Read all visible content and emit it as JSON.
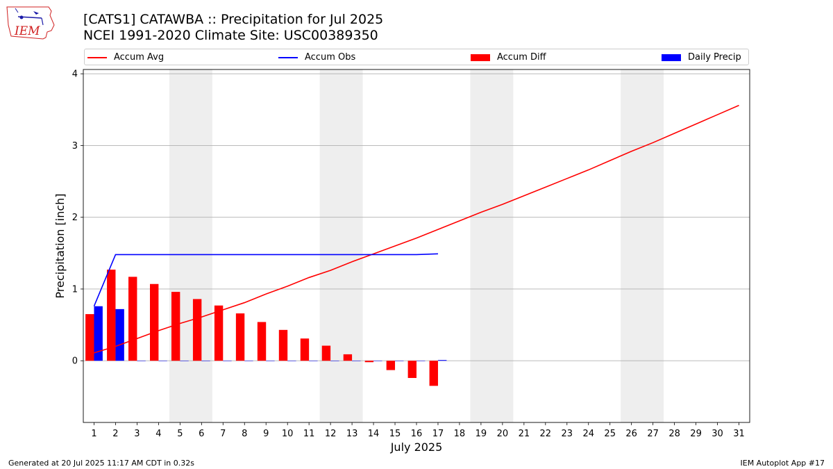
{
  "header": {
    "title_line1": "[CATS1] CATAWBA :: Precipitation for Jul 2025",
    "title_line2": "NCEI 1991-2020 Climate Site: USC00389350"
  },
  "logo": {
    "text": "IEM"
  },
  "footer": {
    "left": "Generated at 20 Jul 2025 11:17 AM CDT in 0.32s",
    "right": "IEM Autoplot App #17"
  },
  "colors": {
    "avg": "#ff0000",
    "obs": "#0000ff",
    "diff": "#ff0000",
    "daily": "#0000ff",
    "weekend": "#eeeeee",
    "grid": "#b0b0b0"
  },
  "chart_data": {
    "type": "bar",
    "xlabel": "July 2025",
    "ylabel": "Precipitation [inch]",
    "xlim": [
      0.5,
      31.5
    ],
    "ylim": [
      -0.86,
      4.06
    ],
    "yticks": [
      0,
      1,
      2,
      3,
      4
    ],
    "xticks": [
      1,
      2,
      3,
      4,
      5,
      6,
      7,
      8,
      9,
      10,
      11,
      12,
      13,
      14,
      15,
      16,
      17,
      18,
      19,
      20,
      21,
      22,
      23,
      24,
      25,
      26,
      27,
      28,
      29,
      30,
      31
    ],
    "grid": "horizontal",
    "legend_placement": "top",
    "weekend_spans": [
      [
        4.5,
        6.5
      ],
      [
        11.5,
        13.5
      ],
      [
        18.5,
        20.5
      ],
      [
        25.5,
        27.5
      ]
    ],
    "legend": [
      "Accum Avg",
      "Accum Obs",
      "Accum Diff",
      "Daily Precip"
    ],
    "series": [
      {
        "name": "Accum Avg",
        "kind": "line",
        "x": [
          1,
          2,
          3,
          4,
          5,
          6,
          7,
          8,
          9,
          10,
          11,
          12,
          13,
          14,
          15,
          16,
          17,
          18,
          19,
          20,
          21,
          22,
          23,
          24,
          25,
          26,
          27,
          28,
          29,
          30,
          31
        ],
        "values": [
          0.11,
          0.2,
          0.31,
          0.42,
          0.52,
          0.61,
          0.71,
          0.81,
          0.93,
          1.04,
          1.16,
          1.26,
          1.38,
          1.49,
          1.6,
          1.71,
          1.83,
          1.95,
          2.07,
          2.18,
          2.3,
          2.42,
          2.54,
          2.66,
          2.79,
          2.92,
          3.04,
          3.17,
          3.3,
          3.43,
          3.56
        ]
      },
      {
        "name": "Accum Obs",
        "kind": "line",
        "x": [
          1,
          2,
          3,
          4,
          5,
          6,
          7,
          8,
          9,
          10,
          11,
          12,
          13,
          14,
          15,
          16,
          17
        ],
        "values": [
          0.76,
          1.48,
          1.48,
          1.48,
          1.48,
          1.48,
          1.48,
          1.48,
          1.48,
          1.48,
          1.48,
          1.48,
          1.48,
          1.48,
          1.48,
          1.48,
          1.49
        ]
      },
      {
        "name": "Accum Diff",
        "kind": "bar",
        "x": [
          1,
          2,
          3,
          4,
          5,
          6,
          7,
          8,
          9,
          10,
          11,
          12,
          13,
          14,
          15,
          16,
          17
        ],
        "values": [
          0.65,
          1.27,
          1.17,
          1.07,
          0.96,
          0.86,
          0.77,
          0.66,
          0.54,
          0.43,
          0.31,
          0.21,
          0.09,
          -0.02,
          -0.13,
          -0.24,
          -0.35
        ]
      },
      {
        "name": "Daily Precip",
        "kind": "bar",
        "x": [
          1,
          2,
          3,
          4,
          5,
          6,
          7,
          8,
          9,
          10,
          11,
          12,
          13,
          14,
          15,
          16,
          17
        ],
        "values": [
          0.76,
          0.72,
          0,
          0,
          0,
          0,
          0,
          0,
          0,
          0,
          0,
          0,
          0,
          0,
          0,
          0,
          0.01
        ]
      }
    ]
  }
}
